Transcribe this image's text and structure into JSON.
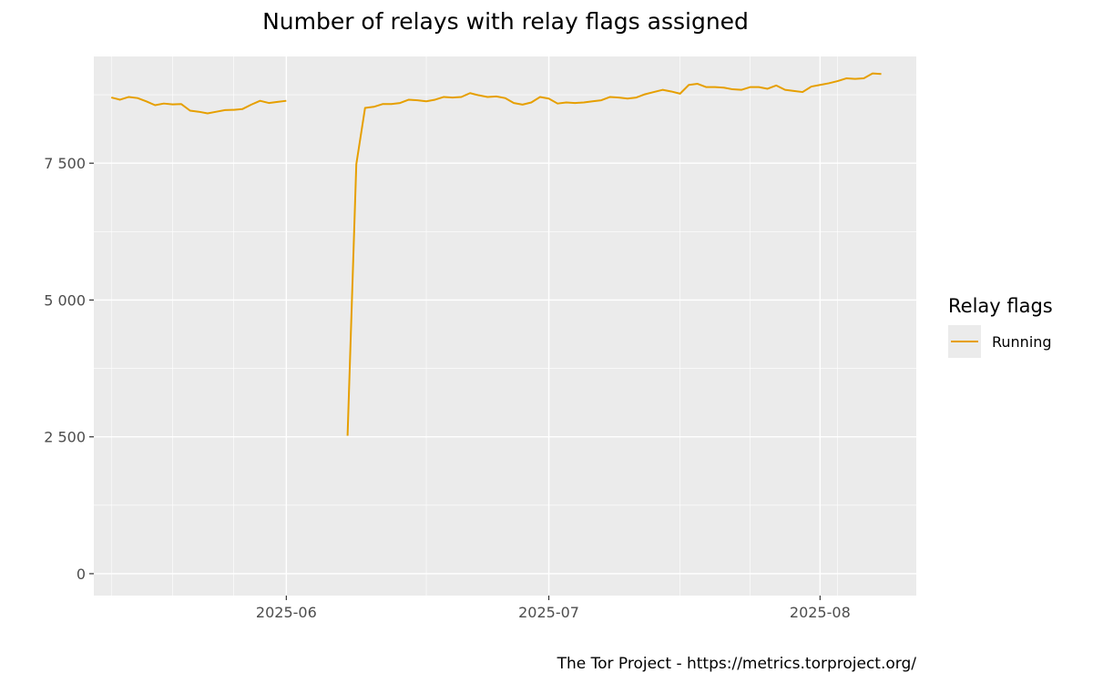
{
  "chart_data": {
    "type": "line",
    "title": "Number of relays with relay flags assigned",
    "caption": "The Tor Project - https://metrics.torproject.org/",
    "xlabel": "",
    "ylabel": "",
    "x_range": [
      "2025-05-10",
      "2025-08-12"
    ],
    "ylim": [
      -400,
      9450
    ],
    "x_ticks": [
      {
        "date": "2025-06-01",
        "label": "2025-06"
      },
      {
        "date": "2025-07-01",
        "label": "2025-07"
      },
      {
        "date": "2025-08-01",
        "label": "2025-08"
      }
    ],
    "x_minor_ticks": [
      "2025-05-12",
      "2025-05-19",
      "2025-05-26",
      "2025-06-17",
      "2025-07-16",
      "2025-07-24",
      "2025-08-03"
    ],
    "y_ticks": [
      {
        "value": 0,
        "label": "0"
      },
      {
        "value": 2500,
        "label": "2 500"
      },
      {
        "value": 5000,
        "label": "5 000"
      },
      {
        "value": 7500,
        "label": "7 500"
      }
    ],
    "y_minor_ticks": [
      1250,
      3750,
      6250,
      8750
    ],
    "grid": true,
    "legend": {
      "title": "Relay flags",
      "position": "right"
    },
    "series": [
      {
        "name": "Running",
        "color": "#E69F00",
        "segments": [
          [
            [
              "2025-05-12",
              8700
            ],
            [
              "2025-05-13",
              8660
            ],
            [
              "2025-05-14",
              8710
            ],
            [
              "2025-05-15",
              8690
            ],
            [
              "2025-05-16",
              8630
            ],
            [
              "2025-05-17",
              8560
            ],
            [
              "2025-05-18",
              8590
            ],
            [
              "2025-05-19",
              8575
            ],
            [
              "2025-05-20",
              8580
            ],
            [
              "2025-05-21",
              8460
            ],
            [
              "2025-05-22",
              8440
            ],
            [
              "2025-05-23",
              8410
            ],
            [
              "2025-05-24",
              8440
            ],
            [
              "2025-05-25",
              8470
            ],
            [
              "2025-05-26",
              8475
            ],
            [
              "2025-05-27",
              8490
            ],
            [
              "2025-05-28",
              8570
            ],
            [
              "2025-05-29",
              8640
            ],
            [
              "2025-05-30",
              8600
            ],
            [
              "2025-05-31",
              8620
            ],
            [
              "2025-06-01",
              8640
            ]
          ],
          [
            [
              "2025-06-08",
              2520
            ],
            [
              "2025-06-09",
              7480
            ],
            [
              "2025-06-10",
              8510
            ],
            [
              "2025-06-11",
              8530
            ],
            [
              "2025-06-12",
              8580
            ],
            [
              "2025-06-13",
              8580
            ],
            [
              "2025-06-14",
              8600
            ],
            [
              "2025-06-15",
              8660
            ],
            [
              "2025-06-16",
              8650
            ],
            [
              "2025-06-17",
              8630
            ],
            [
              "2025-06-18",
              8660
            ],
            [
              "2025-06-19",
              8710
            ],
            [
              "2025-06-20",
              8700
            ],
            [
              "2025-06-21",
              8710
            ],
            [
              "2025-06-22",
              8780
            ],
            [
              "2025-06-23",
              8740
            ],
            [
              "2025-06-24",
              8710
            ],
            [
              "2025-06-25",
              8720
            ],
            [
              "2025-06-26",
              8690
            ],
            [
              "2025-06-27",
              8600
            ],
            [
              "2025-06-28",
              8570
            ],
            [
              "2025-06-29",
              8610
            ],
            [
              "2025-06-30",
              8710
            ],
            [
              "2025-07-01",
              8680
            ],
            [
              "2025-07-02",
              8590
            ],
            [
              "2025-07-03",
              8610
            ],
            [
              "2025-07-04",
              8600
            ],
            [
              "2025-07-05",
              8610
            ],
            [
              "2025-07-06",
              8630
            ],
            [
              "2025-07-07",
              8650
            ],
            [
              "2025-07-08",
              8710
            ],
            [
              "2025-07-09",
              8700
            ],
            [
              "2025-07-10",
              8680
            ],
            [
              "2025-07-11",
              8700
            ],
            [
              "2025-07-12",
              8760
            ],
            [
              "2025-07-13",
              8800
            ],
            [
              "2025-07-14",
              8840
            ],
            [
              "2025-07-15",
              8810
            ],
            [
              "2025-07-16",
              8770
            ],
            [
              "2025-07-17",
              8930
            ],
            [
              "2025-07-18",
              8950
            ],
            [
              "2025-07-19",
              8890
            ],
            [
              "2025-07-20",
              8890
            ],
            [
              "2025-07-21",
              8880
            ],
            [
              "2025-07-22",
              8850
            ],
            [
              "2025-07-23",
              8840
            ],
            [
              "2025-07-24",
              8890
            ],
            [
              "2025-07-25",
              8890
            ],
            [
              "2025-07-26",
              8860
            ],
            [
              "2025-07-27",
              8920
            ],
            [
              "2025-07-28",
              8840
            ],
            [
              "2025-07-29",
              8820
            ],
            [
              "2025-07-30",
              8800
            ],
            [
              "2025-07-31",
              8900
            ],
            [
              "2025-08-01",
              8930
            ],
            [
              "2025-08-02",
              8960
            ],
            [
              "2025-08-03",
              9000
            ],
            [
              "2025-08-04",
              9050
            ],
            [
              "2025-08-05",
              9040
            ],
            [
              "2025-08-06",
              9050
            ],
            [
              "2025-08-07",
              9140
            ],
            [
              "2025-08-08",
              9130
            ]
          ]
        ]
      }
    ]
  }
}
